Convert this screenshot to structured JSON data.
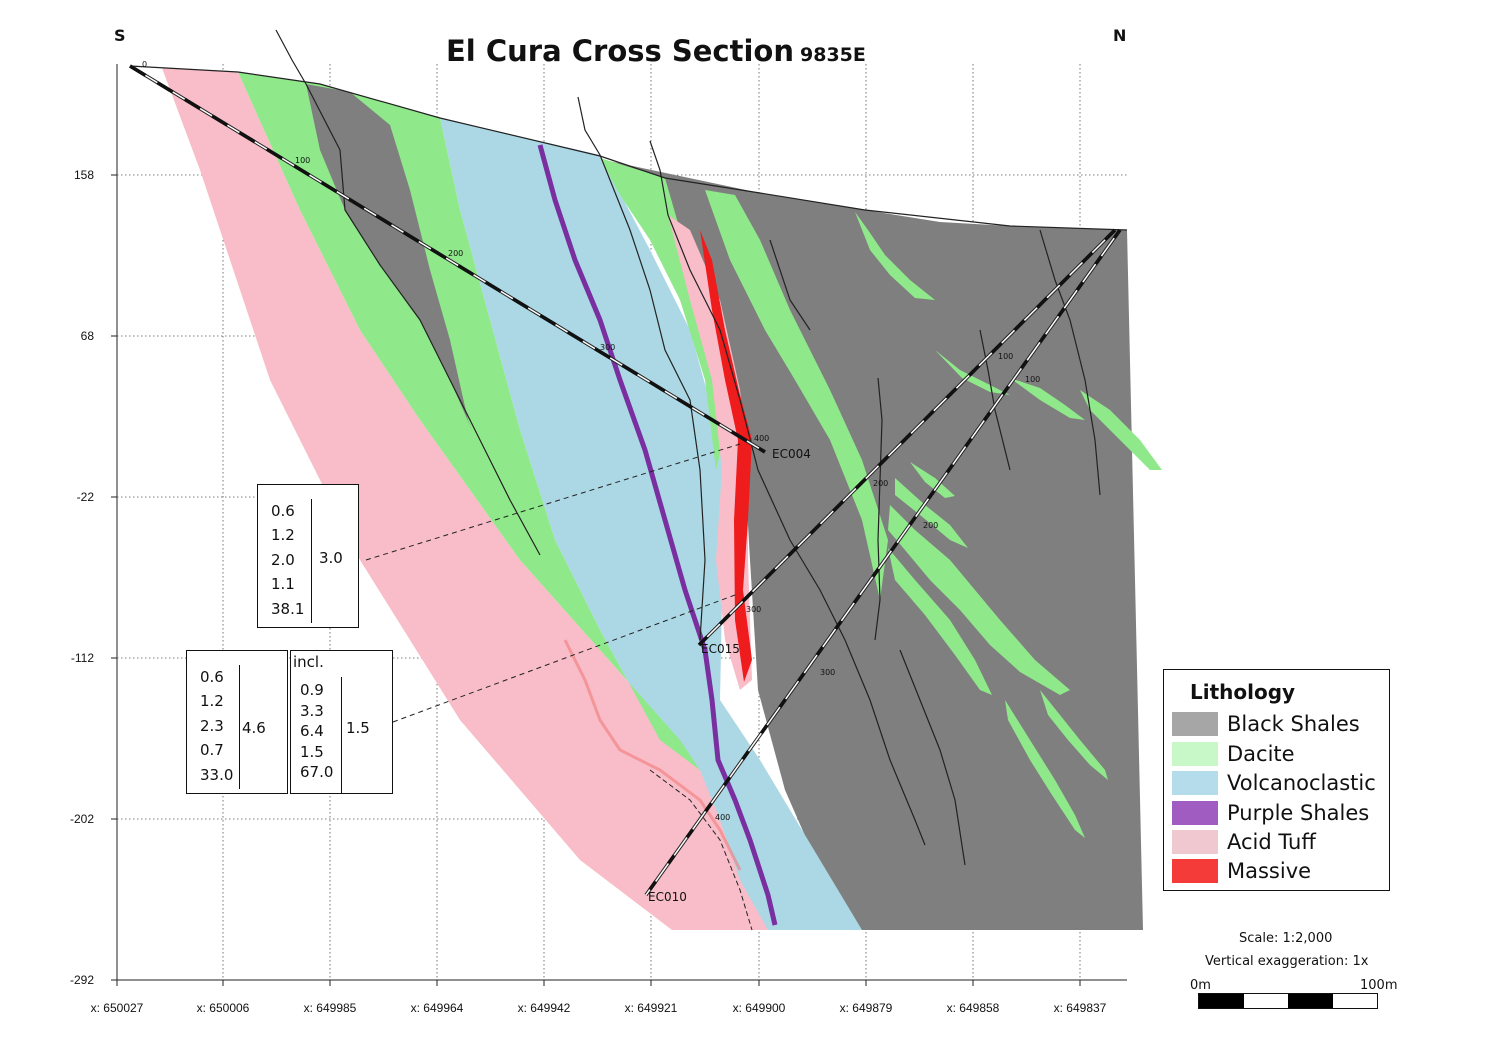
{
  "title": "El Cura Cross Section",
  "subtitle": "9835E",
  "compass": {
    "left": "S",
    "right": "N"
  },
  "y_ticks": [
    "158",
    "68",
    "-22",
    "-112",
    "-202",
    "-292"
  ],
  "x_ticks": [
    "x: 650027",
    "x: 650006",
    "x: 649985",
    "x: 649964",
    "x: 649942",
    "x: 649921",
    "x: 649900",
    "x: 649879",
    "x: 649858",
    "x: 649837"
  ],
  "drillholes": [
    "EC004",
    "EC015",
    "EC010"
  ],
  "depth_marks": [
    "0",
    "100",
    "200",
    "300",
    "400",
    "100",
    "200",
    "300",
    "100",
    "200",
    "300",
    "400"
  ],
  "assays": {
    "upper": {
      "values": [
        "0.6",
        "1.2",
        "2.0",
        "1.1",
        "38.1"
      ],
      "average": "3.0"
    },
    "lower": {
      "values": [
        "0.6",
        "1.2",
        "2.3",
        "0.7",
        "33.0"
      ],
      "average": "4.6"
    },
    "incl": {
      "label": "incl.",
      "values": [
        "0.9",
        "3.3",
        "6.4",
        "1.5",
        "67.0"
      ],
      "average": "1.5"
    }
  },
  "legend": {
    "title": "Lithology",
    "items": [
      {
        "label": "Black Shales",
        "color": "#a6a6a6"
      },
      {
        "label": "Dacite",
        "color": "#c8f7c8"
      },
      {
        "label": "Volcanoclastic",
        "color": "#b4dcea"
      },
      {
        "label": "Purple Shales",
        "color": "#a05cc0"
      },
      {
        "label": "Acid Tuff",
        "color": "#f0c8d0"
      },
      {
        "label": "Massive",
        "color": "#f53a3a"
      }
    ]
  },
  "scale": {
    "ratio": "Scale: 1:2,000",
    "exaggeration": "Vertical exaggeration: 1x",
    "start": "0m",
    "end": "100m"
  },
  "colors": {
    "black_shales": "#7f7f7f",
    "dacite": "#8fe98a",
    "volcanoclastic": "#acd8e5",
    "purple_shales": "#7a2fa0",
    "acid_tuff": "#f8bdc8",
    "massive": "#ee1c1c"
  }
}
